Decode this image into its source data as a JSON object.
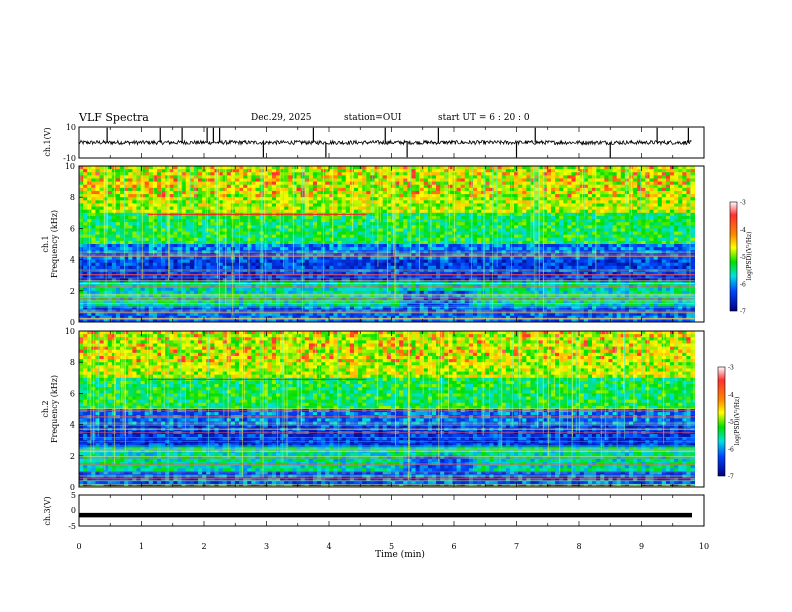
{
  "header": {
    "title": "VLF Spectra",
    "date": "Dec.29, 2025",
    "station": "station=OUI",
    "start": "start UT =  6 : 20 : 0"
  },
  "chart_data": [
    {
      "type": "line",
      "panel": "ch1-waveform",
      "ylabel": "ch.1(V)",
      "ylim": [
        -10,
        10
      ],
      "yticks": [
        "10",
        "-10"
      ],
      "xlim": [
        0,
        10
      ],
      "baseline": 0,
      "noise_amplitude": 1.3,
      "spikes_min": [
        0.45,
        1.3,
        1.65,
        2.05,
        2.15,
        2.25,
        2.95,
        3.75,
        3.95,
        4.9,
        5.25,
        5.75,
        7.0,
        7.3,
        8.5,
        9.25,
        9.75
      ]
    },
    {
      "type": "heatmap",
      "panel": "ch1-spectrogram",
      "ylabel_top": "ch.1",
      "ylabel": "Frequency (kHz)",
      "ylim": [
        0,
        10
      ],
      "yticks": [
        "0",
        "2",
        "4",
        "6",
        "8",
        "10"
      ],
      "xlim": [
        0,
        9.85
      ],
      "colorbar": {
        "label": "log(PSD)(V²/Hz)",
        "range": [
          -7,
          -3
        ],
        "ticks": [
          "-3",
          "-4",
          "-5",
          "-6",
          "-7"
        ]
      }
    },
    {
      "type": "heatmap",
      "panel": "ch2-spectrogram",
      "ylabel_top": "ch.2",
      "ylabel": "Frequency (kHz)",
      "ylim": [
        0,
        10
      ],
      "yticks": [
        "0",
        "2",
        "4",
        "6",
        "8",
        "10"
      ],
      "xlim": [
        0,
        9.85
      ],
      "colorbar": {
        "label": "log(PSD)(V²/Hz)",
        "range": [
          -7,
          -3
        ],
        "ticks": [
          "-3",
          "-4",
          "-5",
          "-6",
          "-7"
        ]
      }
    },
    {
      "type": "line",
      "panel": "ch3-waveform",
      "ylabel": "ch.3(V)",
      "ylim": [
        -5,
        5
      ],
      "yticks": [
        "5",
        "0",
        "-5"
      ],
      "xlim": [
        0,
        10
      ],
      "baseline": -1.5
    }
  ],
  "x_axis": {
    "label": "Time (min)",
    "ticks": [
      "0",
      "1",
      "2",
      "3",
      "4",
      "5",
      "6",
      "7",
      "8",
      "9",
      "10"
    ]
  }
}
